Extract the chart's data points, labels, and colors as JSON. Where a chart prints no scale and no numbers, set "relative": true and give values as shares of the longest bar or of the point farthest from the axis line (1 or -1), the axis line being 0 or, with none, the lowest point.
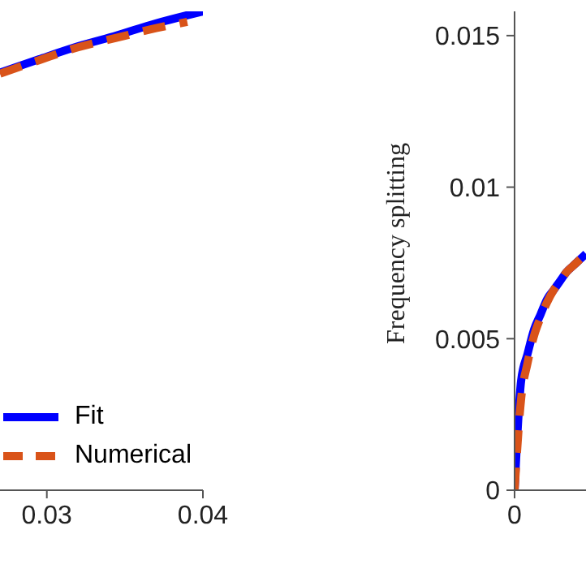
{
  "chart_data": [
    {
      "type": "line",
      "relative": true,
      "x": [
        0.027,
        0.0295,
        0.032,
        0.0345,
        0.037,
        0.04
      ],
      "xlim": [
        0.027,
        0.04
      ],
      "xticks": [
        0.03,
        0.04
      ],
      "tick_labels": "x",
      "legend": "bottom right",
      "series": [
        {
          "name": "Fit",
          "color": "#0000ff",
          "line_style": "solid",
          "values": [
            0.872,
            0.9,
            0.927,
            0.95,
            0.975,
            1.0
          ]
        },
        {
          "name": "Numerical",
          "color": "#d95319",
          "line_style": "dashed",
          "x": [
            0.027,
            0.0295,
            0.032,
            0.0345,
            0.037,
            0.039
          ],
          "values": [
            0.87,
            0.898,
            0.925,
            0.945,
            0.965,
            0.978
          ]
        }
      ]
    },
    {
      "type": "line",
      "ylabel": "Frequency splitting",
      "categories": [
        "0",
        null,
        null,
        null,
        null,
        null,
        null,
        null,
        null,
        null,
        null,
        null
      ],
      "ylim": [
        0,
        0.0158
      ],
      "yticks": [
        0,
        0.005,
        0.01,
        0.015
      ],
      "legend": false,
      "series": [
        {
          "color": "#0000ff",
          "line_style": "solid",
          "values": [
            0,
            0.0036,
            0.0045,
            0.0053,
            0.0058,
            0.0063,
            0.0066,
            0.0069,
            0.0072,
            0.0074,
            0.0076,
            0.0078
          ]
        },
        {
          "color": "#d95319",
          "line_style": "dashed",
          "values": [
            0,
            0.003,
            0.0042,
            0.0051,
            0.0057,
            0.0062,
            0.0066,
            0.0069,
            0.0072,
            0.0074,
            0.0076,
            0.0078
          ]
        }
      ]
    }
  ]
}
